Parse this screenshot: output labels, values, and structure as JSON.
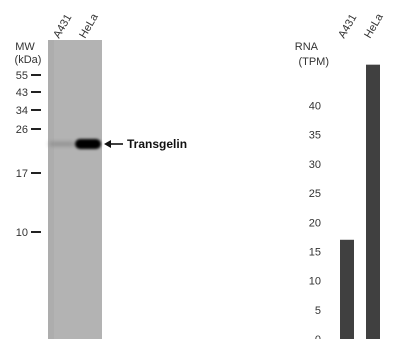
{
  "chart_data": [
    {
      "type": "western-blot",
      "title": "",
      "mw_axis": {
        "label_line1": "MW",
        "label_line2": "(kDa)",
        "markers": [
          55,
          43,
          34,
          26,
          17,
          10
        ]
      },
      "lanes": [
        "A431",
        "HeLa"
      ],
      "band": {
        "label": "Transgelin",
        "approx_kda": 23,
        "intensity": [
          0.1,
          1.0
        ]
      }
    },
    {
      "type": "bar",
      "ylabel_line1": "RNA",
      "ylabel_line2": "(TPM)",
      "categories": [
        "A431",
        "HeLa"
      ],
      "values": [
        17,
        47
      ],
      "ylim": [
        0,
        47.8
      ],
      "yticks": [
        0,
        5,
        10,
        15,
        20,
        25,
        30,
        35,
        40
      ],
      "grid": false,
      "bar_color": "#404040"
    }
  ]
}
